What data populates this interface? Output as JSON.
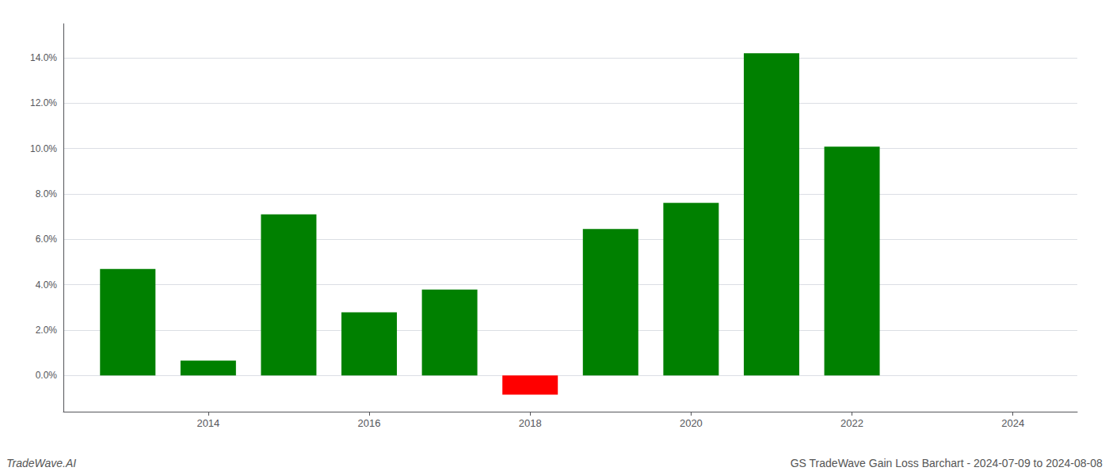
{
  "chart_data": {
    "type": "bar",
    "title": "GS TradeWave Gain Loss Barchart - 2024-07-09 to 2024-08-08",
    "annotations": [
      "TradeWave.AI"
    ],
    "x": [
      2013,
      2014,
      2015,
      2016,
      2017,
      2018,
      2019,
      2020,
      2021,
      2022,
      2023
    ],
    "values": [
      0.0469,
      0.0065,
      0.071,
      0.0278,
      0.0378,
      -0.0085,
      0.0645,
      0.076,
      0.142,
      0.1008,
      0.0
    ],
    "colors": [
      "#008000",
      "#008000",
      "#008000",
      "#008000",
      "#008000",
      "#ff0000",
      "#008000",
      "#008000",
      "#008000",
      "#008000",
      "#008000"
    ],
    "xlim": [
      2012.2,
      2024.8
    ],
    "xticks": [
      2014,
      2016,
      2018,
      2020,
      2022,
      2024
    ],
    "ylim": [
      -0.016,
      0.155
    ],
    "yticks": [
      {
        "value": 0.0,
        "label": "0.0%"
      },
      {
        "value": 0.02,
        "label": "2.0%"
      },
      {
        "value": 0.04,
        "label": "4.0%"
      },
      {
        "value": 0.06,
        "label": "6.0%"
      },
      {
        "value": 0.08,
        "label": "8.0%"
      },
      {
        "value": 0.1,
        "label": "10.0%"
      },
      {
        "value": 0.12,
        "label": "12.0%"
      },
      {
        "value": 0.14,
        "label": "14.0%"
      }
    ],
    "grid": true
  }
}
